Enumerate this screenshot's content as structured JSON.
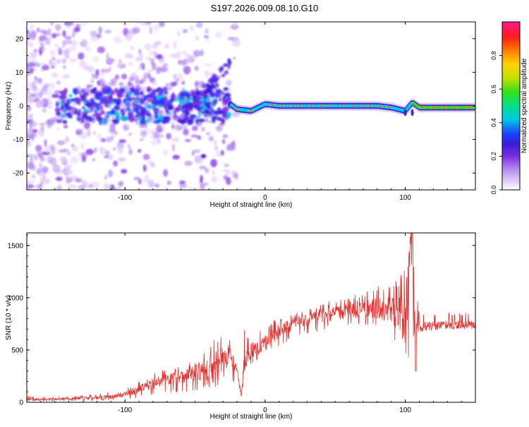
{
  "figure": {
    "title": "S197.2026.009.08.10.G10",
    "colors": {
      "line": "#e8312e",
      "axis": "#000000",
      "background": "#ffffff",
      "colormap": [
        "#ffffff",
        "#e4cdf7",
        "#b48ff0",
        "#7a2fe0",
        "#3a1bd9",
        "#1e3cff",
        "#00c8e6",
        "#00e08a",
        "#33e01a",
        "#c8e000",
        "#ffd000",
        "#ff7a00",
        "#ff1a1a",
        "#ff1a8c"
      ]
    }
  },
  "chart_data": [
    {
      "type": "heatmap",
      "title": "",
      "xlabel": "Height of straight line (km)",
      "ylabel": "Frequency (Hz)",
      "xlim": [
        -170,
        150
      ],
      "ylim": [
        -25,
        25
      ],
      "xticks": [
        -100,
        0,
        100
      ],
      "xtick_labels": [
        "-100",
        "0",
        "100"
      ],
      "yticks": [
        -20,
        -10,
        0,
        10,
        20
      ],
      "ytick_labels": [
        "-20",
        "-10",
        "0",
        "10",
        "20"
      ],
      "colorbar": {
        "label": "Normalized spectral amplitude",
        "range": [
          0,
          1
        ],
        "ticks": [
          0,
          0.2,
          0.4,
          0.6,
          0.8
        ],
        "tick_labels": [
          "0.0",
          "0.2",
          "0.4",
          "0.6",
          "0.8"
        ]
      },
      "description_series": [
        {
          "name": "ridge_frequency_hz",
          "x": [
            -25,
            -20,
            -10,
            0,
            10,
            20,
            30,
            40,
            50,
            60,
            70,
            80,
            90,
            100,
            105,
            110,
            120,
            130,
            140,
            150
          ],
          "y": [
            0.5,
            -1.0,
            -1.5,
            0.5,
            0.0,
            0.0,
            0.0,
            0.0,
            0.0,
            0.0,
            0.0,
            0.0,
            -0.5,
            -1.5,
            1.0,
            -0.5,
            -0.5,
            -0.5,
            -0.5,
            -0.5
          ]
        }
      ]
    },
    {
      "type": "line",
      "title": "",
      "xlabel": "Height of straight line (km)",
      "ylabel": "SNR (10 * v/v)",
      "xlim": [
        -170,
        150
      ],
      "ylim": [
        0,
        1620
      ],
      "xticks": [
        -100,
        0,
        100
      ],
      "xtick_labels": [
        "-100",
        "0",
        "100"
      ],
      "yticks": [
        0,
        500,
        1000,
        1500
      ],
      "ytick_labels": [
        "0",
        "500",
        "1000",
        "1500"
      ],
      "series": [
        {
          "name": "SNR",
          "x": [
            -170,
            -150,
            -130,
            -110,
            -100,
            -90,
            -80,
            -70,
            -60,
            -50,
            -40,
            -35,
            -30,
            -25,
            -20,
            -17,
            -15,
            -12,
            -10,
            -5,
            0,
            5,
            10,
            20,
            30,
            40,
            50,
            60,
            70,
            80,
            90,
            95,
            100,
            105,
            107,
            110,
            120,
            130,
            140,
            150
          ],
          "y": [
            25,
            30,
            40,
            50,
            80,
            120,
            180,
            220,
            250,
            280,
            320,
            380,
            420,
            450,
            320,
            50,
            350,
            450,
            500,
            520,
            560,
            620,
            680,
            760,
            800,
            830,
            850,
            880,
            900,
            900,
            880,
            850,
            780,
            1620,
            700,
            720,
            730,
            740,
            740,
            740
          ],
          "envelope_max": [
            60,
            60,
            70,
            100,
            130,
            200,
            280,
            320,
            350,
            400,
            600,
            620,
            650,
            600,
            250,
            100,
            700,
            620,
            680,
            700,
            720,
            780,
            800,
            850,
            880,
            950,
            980,
            1020,
            1040,
            1120,
            1100,
            1200,
            1300,
            1620,
            1100,
            870,
            860,
            860,
            860,
            860
          ],
          "envelope_min": [
            10,
            10,
            15,
            20,
            30,
            40,
            60,
            80,
            90,
            100,
            120,
            140,
            180,
            180,
            90,
            20,
            250,
            330,
            350,
            400,
            420,
            480,
            520,
            600,
            650,
            680,
            700,
            700,
            700,
            720,
            600,
            500,
            350,
            280,
            650,
            680,
            690,
            700,
            700,
            700
          ]
        }
      ]
    }
  ]
}
